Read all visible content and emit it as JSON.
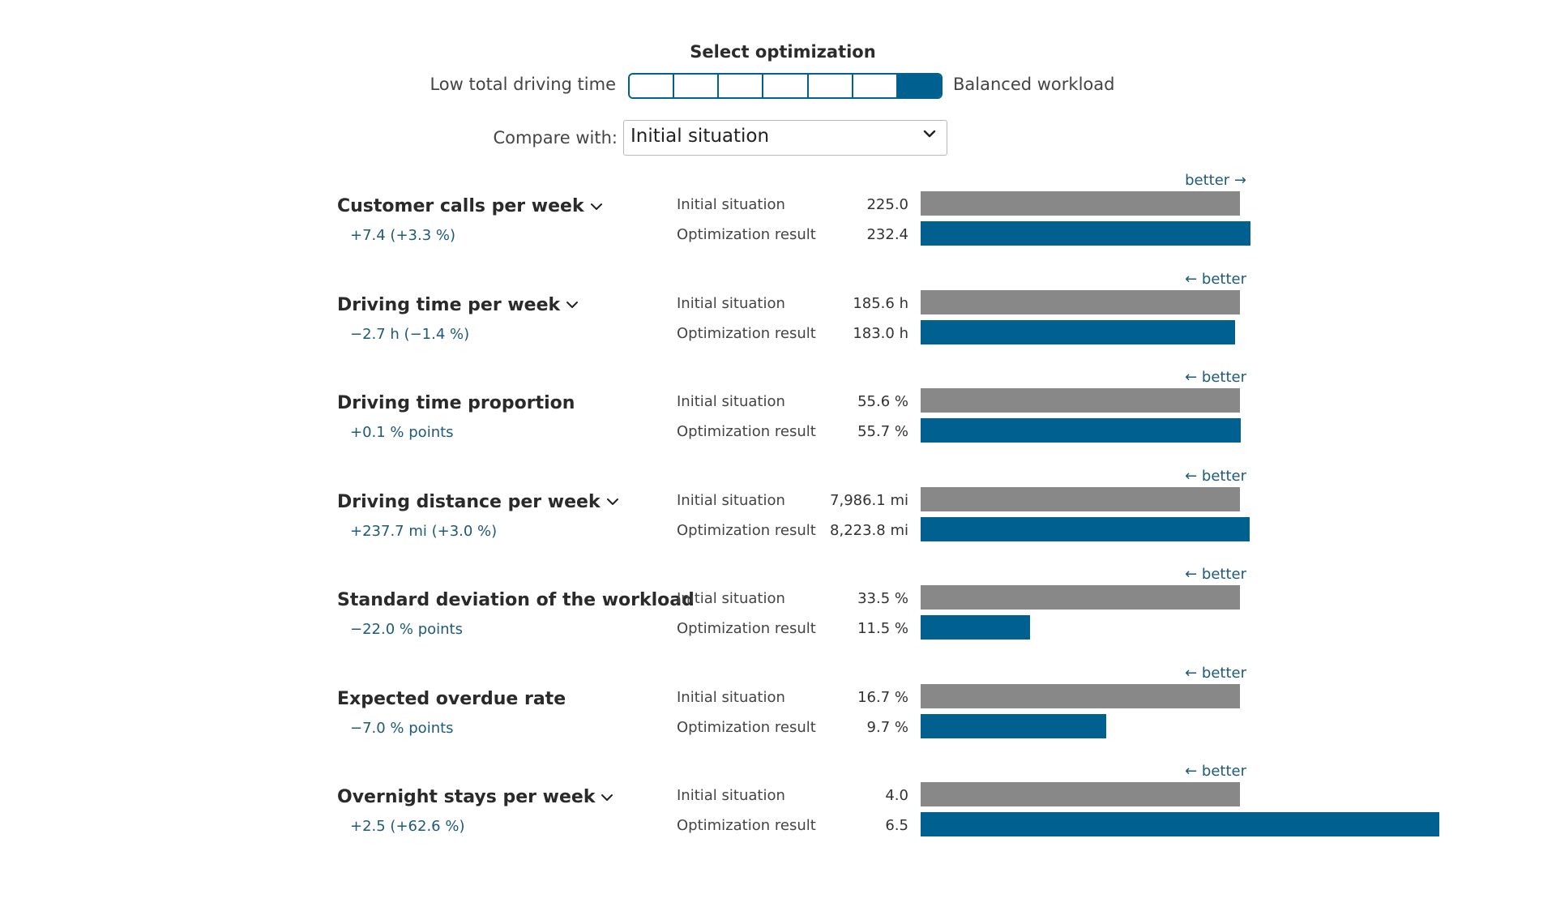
{
  "optimization": {
    "title": "Select optimization",
    "left_label": "Low total driving time",
    "right_label": "Balanced workload",
    "steps": 7,
    "selected_step": 7,
    "active_color": "#00608f"
  },
  "compare": {
    "label": "Compare with:",
    "selected": "Initial situation"
  },
  "row_labels": {
    "initial": "Initial situation",
    "result": "Optimization result"
  },
  "colors": {
    "initial_bar": "#888888",
    "result_bar": "#00608f",
    "accent_text": "#1e5a7a"
  },
  "metrics": [
    {
      "name": "Customer calls per week",
      "expandable": true,
      "delta": "+7.4 (+3.3 %)",
      "better": "better →",
      "initial_value": "225.0",
      "result_value": "232.4",
      "initial_num": 225.0,
      "result_num": 232.4
    },
    {
      "name": "Driving time per week",
      "expandable": true,
      "delta": "−2.7 h (−1.4 %)",
      "better": "← better",
      "initial_value": "185.6 h",
      "result_value": "183.0 h",
      "initial_num": 185.6,
      "result_num": 183.0
    },
    {
      "name": "Driving time proportion",
      "expandable": false,
      "delta": "+0.1 % points",
      "better": "← better",
      "initial_value": "55.6 %",
      "result_value": "55.7 %",
      "initial_num": 55.6,
      "result_num": 55.7
    },
    {
      "name": "Driving distance per week",
      "expandable": true,
      "delta": "+237.7 mi (+3.0 %)",
      "better": "← better",
      "initial_value": "7,986.1 mi",
      "result_value": "8,223.8 mi",
      "initial_num": 7986.1,
      "result_num": 8223.8
    },
    {
      "name": "Standard deviation of the workload",
      "expandable": false,
      "delta": "−22.0 % points",
      "better": "← better",
      "initial_value": "33.5 %",
      "result_value": "11.5 %",
      "initial_num": 33.5,
      "result_num": 11.5
    },
    {
      "name": "Expected overdue rate",
      "expandable": false,
      "delta": "−7.0 % points",
      "better": "← better",
      "initial_value": "16.7 %",
      "result_value": "9.7 %",
      "initial_num": 16.7,
      "result_num": 9.7
    },
    {
      "name": "Overnight stays per week",
      "expandable": true,
      "delta": "+2.5 (+62.6 %)",
      "better": "← better",
      "initial_value": "4.0",
      "result_value": "6.5",
      "initial_num": 4.0,
      "result_num": 6.5
    }
  ]
}
